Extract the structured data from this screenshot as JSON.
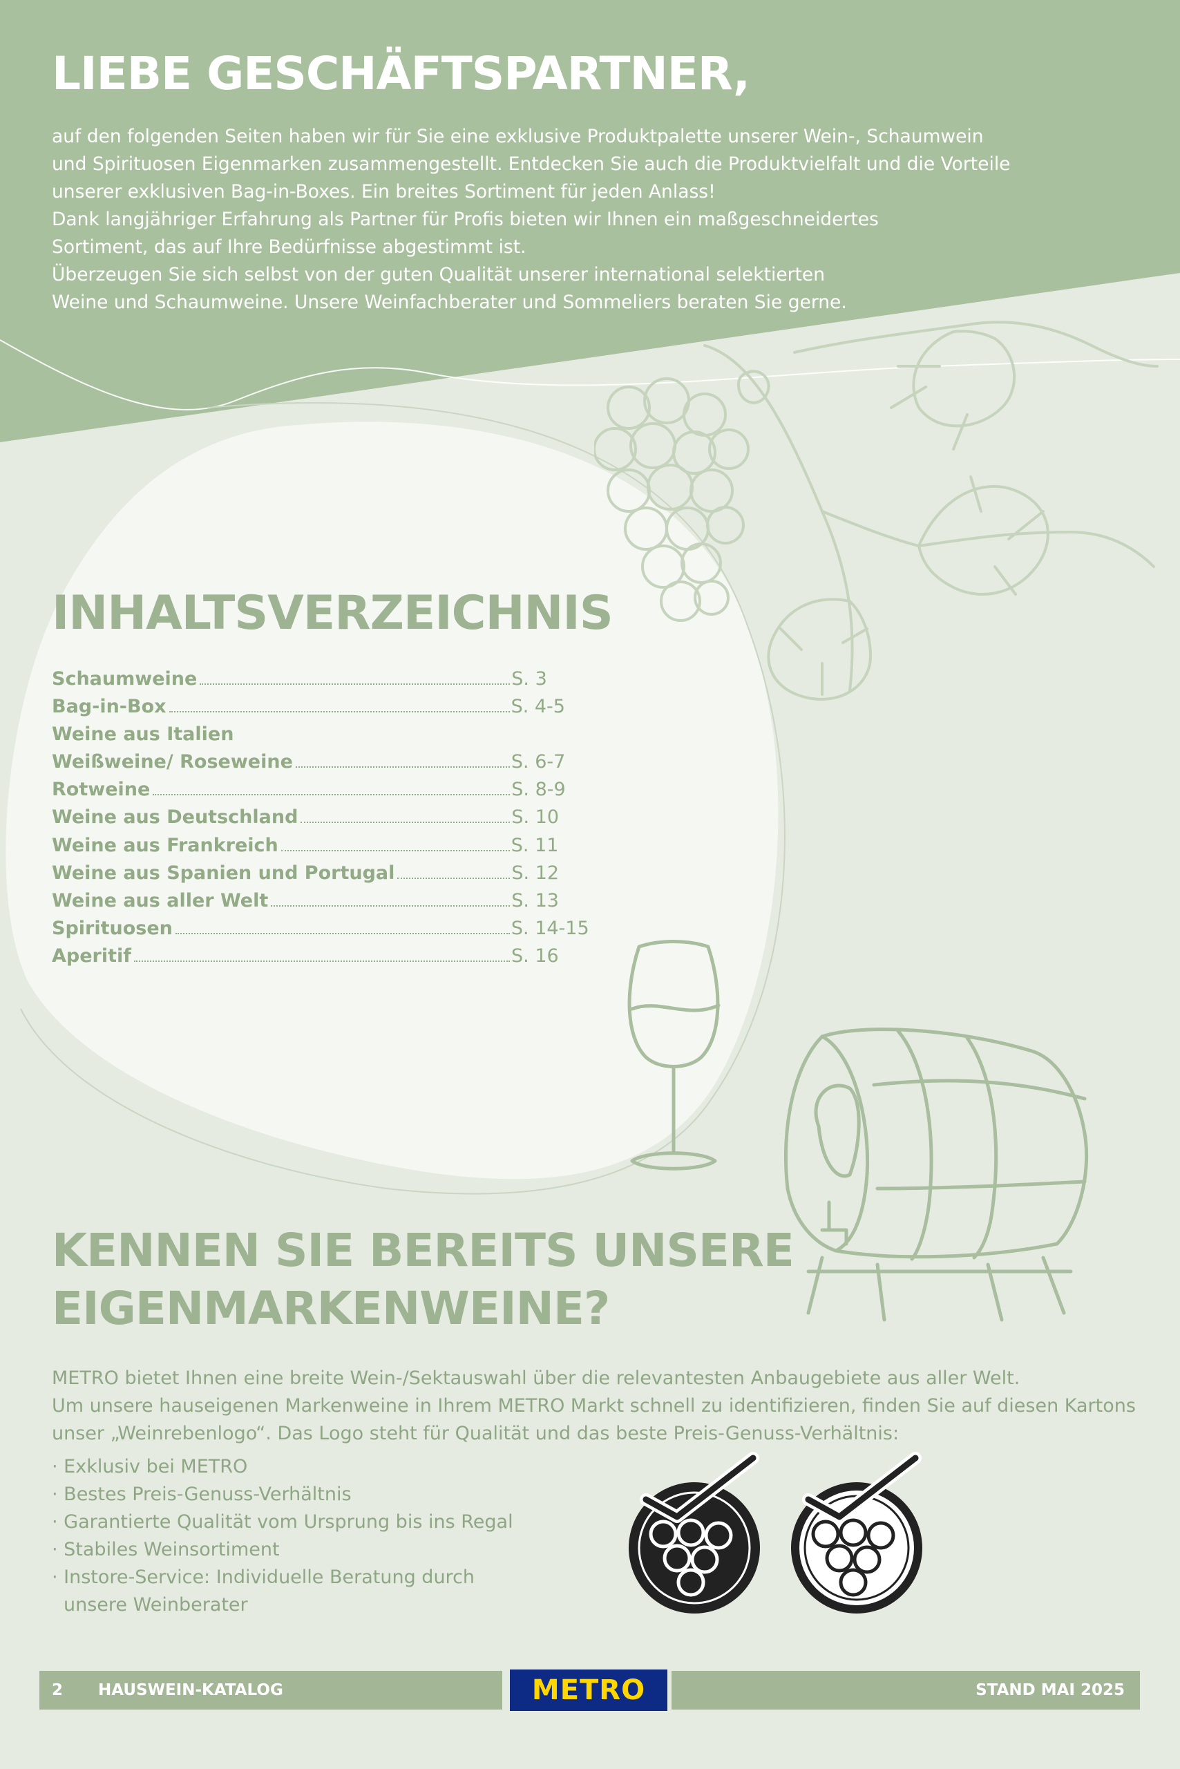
{
  "header": {
    "title": "LIEBE GESCHÄFTSPARTNER,",
    "intro_lines": [
      "auf den folgenden Seiten haben wir für Sie eine exklusive Produktpalette unserer Wein-, Schaumwein",
      "und Spirituosen Eigenmarken zusammengestellt. Entdecken Sie auch die Produktvielfalt und die Vorteile",
      "unserer exklusiven Bag-in-Boxes. Ein breites Sortiment für jeden Anlass!",
      "Dank langjähriger Erfahrung als Partner für Profis bieten wir Ihnen ein maßgeschneidertes",
      "Sortiment, das auf Ihre Bedürfnisse abgestimmt ist.",
      "Überzeugen Sie sich selbst von der guten Qualität unserer international selektierten",
      "Weine und Schaumweine. Unsere Weinfachberater und Sommeliers beraten Sie gerne."
    ]
  },
  "toc": {
    "title": "INHALTSVERZEICHNIS",
    "items": [
      {
        "label": "Schaumweine",
        "page": "S. 3"
      },
      {
        "label": "Bag-in-Box",
        "page": "S. 4-5"
      },
      {
        "label": "Weine aus Italien",
        "page": ""
      },
      {
        "label": "Weißweine/ Roseweine",
        "page": "S. 6-7"
      },
      {
        "label": "Rotweine",
        "page": "S. 8-9"
      },
      {
        "label": "Weine aus Deutschland",
        "page": "S. 10"
      },
      {
        "label": "Weine aus Frankreich",
        "page": "S. 11"
      },
      {
        "label": "Weine aus Spanien und Portugal",
        "page": "S. 12"
      },
      {
        "label": "Weine aus aller Welt",
        "page": "S. 13"
      },
      {
        "label": "Spirituosen",
        "page": "S. 14-15"
      },
      {
        "label": "Aperitif",
        "page": "S. 16"
      }
    ]
  },
  "brands": {
    "title_lines": [
      "KENNEN SIE BEREITS UNSERE",
      "EIGENMARKENWEINE?"
    ],
    "text_lines": [
      "METRO bietet Ihnen eine breite Wein-/Sektauswahl über die relevantesten Anbaugebiete aus aller Welt.",
      "Um unsere hauseigenen Markenweine in Ihrem METRO Markt schnell zu identifizieren, finden Sie auf diesen Kartons",
      "unser „Weinrebenlogo“. Das Logo steht für Qualität und das beste Preis-Genuss-Verhältnis:"
    ],
    "bullets": [
      "· Exklusiv bei METRO",
      "· Bestes Preis-Genuss-Verhältnis",
      "· Garantierte Qualität vom Ursprung bis ins Regal",
      "· Stabiles Weinsortiment",
      "· Instore-Service: Individuelle Beratung durch",
      "unsere Weinberater"
    ]
  },
  "footer": {
    "page_number": "2",
    "catalog": "HAUSWEIN-KATALOG",
    "logo": "METRO",
    "date": "STAND MAI 2025"
  },
  "colors": {
    "header_green": "#a9c09e",
    "sage": "#9db391",
    "background": "#e5ebe1",
    "blob": "#f5f7f2",
    "metro_blue": "#0d2a84",
    "metro_yellow": "#ffd600"
  },
  "icons": [
    "grape-vine-icon",
    "wine-glass-icon",
    "wine-barrel-icon",
    "grape-quality-seal-dark-icon",
    "grape-quality-seal-light-icon"
  ]
}
